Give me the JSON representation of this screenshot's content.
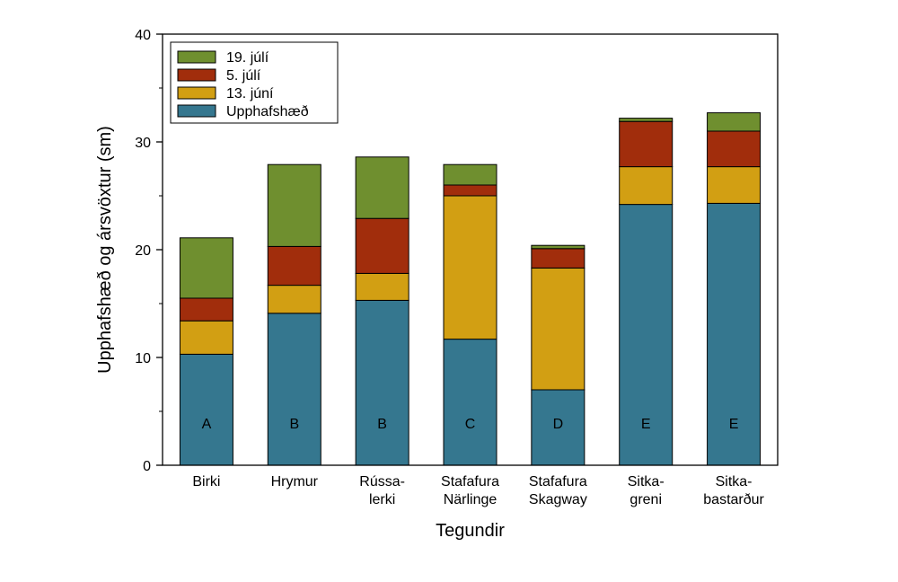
{
  "chart_data": {
    "type": "bar",
    "stacked": true,
    "xlabel": "Tegundir",
    "ylabel": "Upphafshæð og ársvöxtur (sm)",
    "ylim": [
      0,
      40
    ],
    "yticks": [
      0,
      10,
      20,
      30,
      40
    ],
    "grid": false,
    "legend_position": "top-left",
    "categories": [
      [
        "Birki"
      ],
      [
        "Hrymur"
      ],
      [
        "Rússa-",
        "lerki"
      ],
      [
        "Stafafura",
        "Närlinge"
      ],
      [
        "Stafafura",
        "Skagway"
      ],
      [
        "Sitka-",
        "greni"
      ],
      [
        "Sitka-",
        "bastarður"
      ]
    ],
    "group_letters": [
      "A",
      "B",
      "B",
      "C",
      "D",
      "E",
      "E"
    ],
    "series": [
      {
        "name": "Upphafshæð",
        "color": "#35778f",
        "values": [
          10.3,
          14.1,
          15.3,
          11.7,
          7.0,
          24.2,
          24.3
        ]
      },
      {
        "name": "13. júní",
        "color": "#d29f13",
        "values": [
          3.1,
          2.6,
          2.5,
          13.3,
          11.3,
          3.5,
          3.4
        ]
      },
      {
        "name": "5. júlí",
        "color": "#a12d0c",
        "values": [
          2.1,
          3.6,
          5.1,
          1.0,
          1.8,
          4.2,
          3.3
        ]
      },
      {
        "name": "19. júlí",
        "color": "#6f8f2f",
        "values": [
          5.6,
          7.6,
          5.7,
          1.9,
          0.3,
          0.3,
          1.7
        ]
      }
    ]
  }
}
